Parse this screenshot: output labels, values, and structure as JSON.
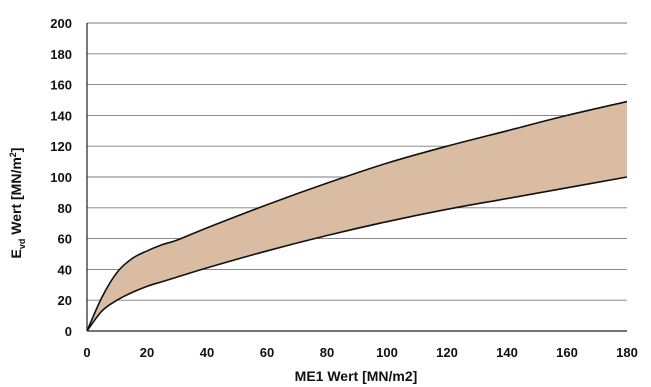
{
  "chart_data": {
    "type": "area",
    "xlabel": "ME1 Wert [MN/m2]",
    "ylabel": {
      "main": "E",
      "sub": "vd",
      "rest": " Wert [MN/m",
      "sup": "2",
      "end": "]"
    },
    "xlim": [
      0,
      180
    ],
    "ylim": [
      0,
      200
    ],
    "x_ticks": [
      0,
      20,
      40,
      60,
      80,
      100,
      120,
      140,
      160,
      180
    ],
    "y_ticks": [
      0,
      20,
      40,
      60,
      80,
      100,
      120,
      140,
      160,
      180,
      200
    ],
    "grid": "horizontal",
    "band_color": "#d9bca1",
    "series": [
      {
        "role": "upper",
        "x": [
          0,
          5,
          10,
          15,
          20,
          25,
          30,
          40,
          60,
          80,
          100,
          120,
          140,
          160,
          180
        ],
        "values": [
          0,
          22,
          38,
          47,
          52,
          56,
          59,
          67,
          82,
          96,
          109,
          120,
          130,
          140,
          149
        ]
      },
      {
        "role": "lower",
        "x": [
          0,
          5,
          10,
          15,
          20,
          25,
          30,
          40,
          60,
          80,
          100,
          120,
          140,
          160,
          180
        ],
        "values": [
          0,
          13,
          20,
          25,
          29,
          32,
          35,
          41,
          52,
          62,
          71,
          79,
          86,
          93,
          100
        ]
      }
    ]
  }
}
